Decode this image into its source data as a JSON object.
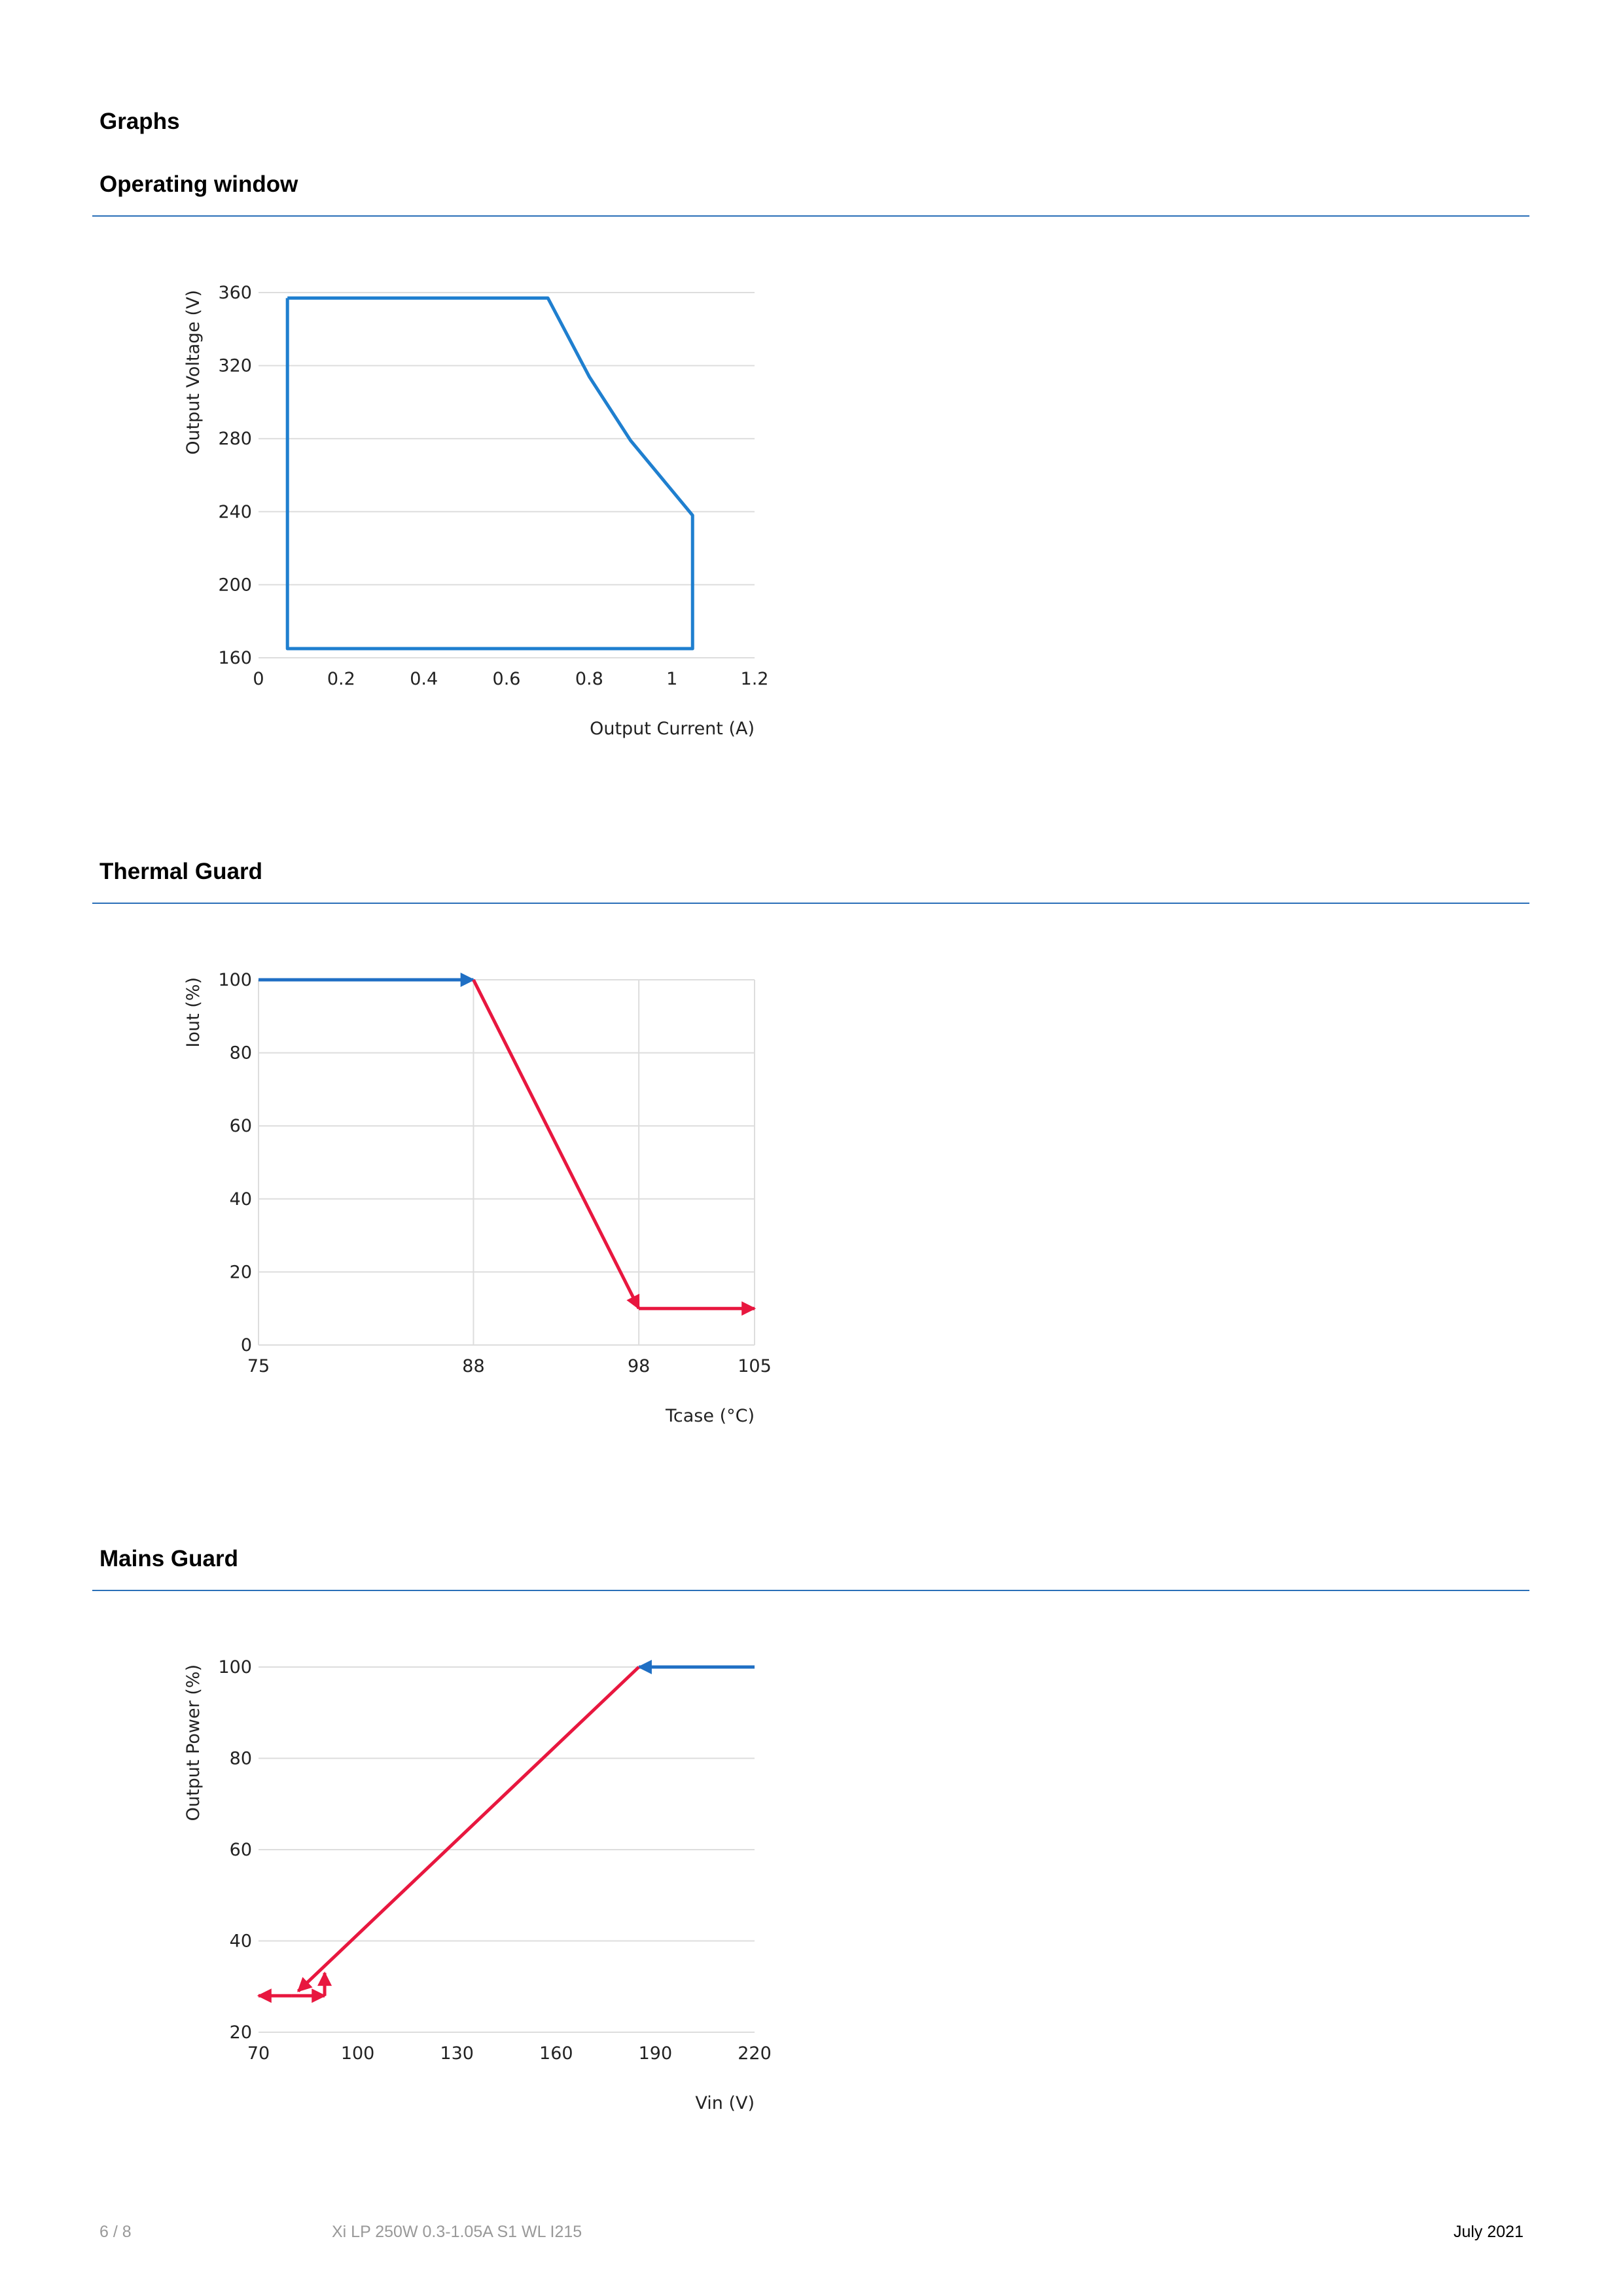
{
  "document": {
    "heading": "Graphs",
    "footer": {
      "page": "6 / 8",
      "product": "Xi LP 250W 0.3-1.05A S1 WL I215",
      "date": "July 2021"
    }
  },
  "chart_data": [
    {
      "type": "line",
      "title": "Operating window",
      "x_label": "Output Current (A)",
      "y_label": "Output Voltage (V)",
      "xlim": [
        0,
        1.2
      ],
      "xticks": [
        0,
        0.2,
        0.4,
        0.6,
        0.8,
        1,
        1.2
      ],
      "ylim": [
        160,
        360
      ],
      "yticks": [
        160,
        200,
        240,
        280,
        320,
        360
      ],
      "grid": "y",
      "arrows": false,
      "series": [
        {
          "color": "#1f7fcf",
          "x": [
            0.07,
            0.7,
            0.8,
            0.9,
            1.05,
            1.05,
            0.07,
            0.07
          ],
          "values": [
            357,
            357,
            314,
            279,
            238,
            165,
            165,
            357
          ]
        }
      ]
    },
    {
      "type": "line",
      "title": "Thermal Guard",
      "x_label": "Tcase (°C)",
      "y_label": "Iout (%)",
      "xlim": [
        75,
        105
      ],
      "xticks": [
        75,
        88,
        98,
        105
      ],
      "ylim": [
        0,
        100
      ],
      "yticks": [
        0,
        20,
        40,
        60,
        80,
        100
      ],
      "grid": "both",
      "arrows": true,
      "series": [
        {
          "color": "#1f6fc4",
          "x": [
            75,
            88
          ],
          "values": [
            100,
            100
          ]
        },
        {
          "color": "#e8173f",
          "x": [
            88,
            98
          ],
          "values": [
            100,
            10
          ]
        },
        {
          "color": "#e8173f",
          "x": [
            98,
            105
          ],
          "values": [
            10,
            10
          ]
        }
      ]
    },
    {
      "type": "line",
      "title": "Mains Guard",
      "x_label": "Vin (V)",
      "y_label": "Output Power (%)",
      "xlim": [
        70,
        220
      ],
      "xticks": [
        70,
        100,
        130,
        160,
        190,
        220
      ],
      "ylim": [
        20,
        100
      ],
      "yticks": [
        20,
        40,
        60,
        80,
        100
      ],
      "grid": "y",
      "arrows": true,
      "series": [
        {
          "color": "#1f6fc4",
          "x": [
            220,
            185
          ],
          "values": [
            100,
            100
          ]
        },
        {
          "color": "#e8173f",
          "x": [
            185,
            82
          ],
          "values": [
            100,
            29
          ]
        },
        {
          "color": "#e8173f",
          "x": [
            80,
            70
          ],
          "values": [
            28,
            28
          ]
        },
        {
          "color": "#e8173f",
          "x": [
            80,
            90
          ],
          "values": [
            28,
            28
          ]
        },
        {
          "color": "#e8173f",
          "x": [
            90,
            90
          ],
          "values": [
            28,
            33
          ]
        }
      ]
    }
  ]
}
